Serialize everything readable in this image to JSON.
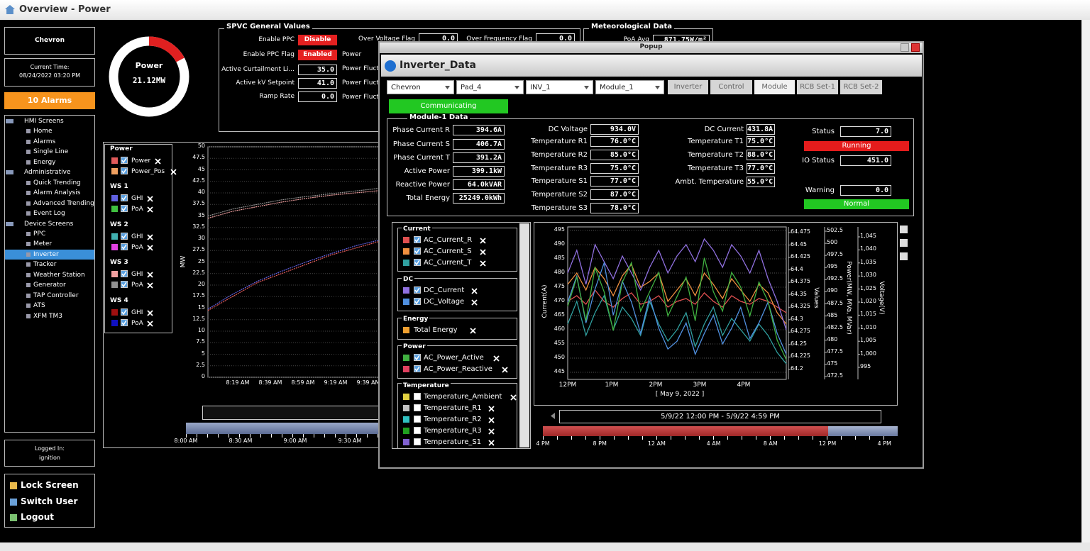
{
  "window": {
    "title": "Overview - Power"
  },
  "sidebar": {
    "site": "Chevron",
    "time_label": "Current Time:",
    "time": "08/24/2022 03:20 PM",
    "alarms": "10 Alarms",
    "tree": [
      {
        "label": "HMI Screens",
        "level": 0
      },
      {
        "label": "Home",
        "level": 1
      },
      {
        "label": "Alarms",
        "level": 1
      },
      {
        "label": "Single Line",
        "level": 1
      },
      {
        "label": "Energy",
        "level": 1
      },
      {
        "label": "Administrative",
        "level": 0
      },
      {
        "label": "Quick Trending",
        "level": 1
      },
      {
        "label": "Alarm Analysis",
        "level": 1
      },
      {
        "label": "Advanced Trending",
        "level": 1
      },
      {
        "label": "Event Log",
        "level": 1
      },
      {
        "label": "Device Screens",
        "level": 0
      },
      {
        "label": "PPC",
        "level": 1
      },
      {
        "label": "Meter",
        "level": 1
      },
      {
        "label": "Inverter",
        "level": 1,
        "selected": true
      },
      {
        "label": "Tracker",
        "level": 1
      },
      {
        "label": "Weather Station",
        "level": 1
      },
      {
        "label": "Generator",
        "level": 1
      },
      {
        "label": "TAP Controller",
        "level": 1
      },
      {
        "label": "ATS",
        "level": 1
      },
      {
        "label": "XFM TM3",
        "level": 1
      }
    ],
    "logged_label": "Logged In:",
    "user": "ignition",
    "actions": [
      "Lock Screen",
      "Switch User",
      "Logout"
    ]
  },
  "power_gauge": {
    "label": "Power",
    "value": "21.12MW"
  },
  "spvc": {
    "title": "SPVC General Values",
    "rows": [
      {
        "label": "Enable PPC",
        "value": "Disable"
      },
      {
        "label": "Enable PPC Flag",
        "value": "Enabled"
      },
      {
        "label": "Active Curtailment Li...",
        "value": "35.0"
      },
      {
        "label": "Active kV Setpoint",
        "value": "41.0"
      },
      {
        "label": "Ramp Rate",
        "value": "0.0"
      }
    ],
    "flags": [
      {
        "label": "Over Voltage Flag",
        "value": "0.0"
      },
      {
        "label": "Over Frequency Flag",
        "value": "0.0"
      }
    ],
    "hidden_labels": [
      "Power",
      "Power Fluct",
      "Power Fluct",
      "Power Fluct"
    ]
  },
  "meteo": {
    "title": "Meteorological Data",
    "label": "PoA Avg",
    "value": "871.75W/m²"
  },
  "overview_trend": {
    "y_label": "MW",
    "ylim": [
      0,
      50
    ],
    "yticks": [
      0,
      2.5,
      5,
      7.5,
      10,
      12.5,
      15,
      17.5,
      20,
      22.5,
      25,
      27.5,
      30,
      32.5,
      35,
      37.5,
      40,
      42.5,
      45,
      47.5,
      50
    ],
    "xticks": [
      "8:19 AM",
      "8:39 AM",
      "8:59 AM",
      "9:19 AM",
      "9:39 AM"
    ],
    "nav_ticks": [
      "8:00 AM",
      "8:30 AM",
      "9:00 AM",
      "9:30 AM"
    ],
    "legend": [
      {
        "title": "Power",
        "items": [
          {
            "name": "Power",
            "color": "#e05a5a",
            "values": [
              14.5,
              17.5,
              20.5,
              22.5,
              24.5,
              26.5,
              28,
              29.5
            ]
          },
          {
            "name": "Power_Pos",
            "color": "#f0a060"
          }
        ]
      },
      {
        "title": "WS 1",
        "items": [
          {
            "name": "GHI",
            "color": "#6060e0",
            "values": [
              14.8,
              18,
              20.8,
              23,
              25,
              26.8,
              28.5,
              29.8
            ]
          },
          {
            "name": "PoA",
            "color": "#40c040"
          }
        ]
      },
      {
        "title": "WS 2",
        "items": [
          {
            "name": "GHI",
            "color": "#40b0b0"
          },
          {
            "name": "PoA",
            "color": "#e040e0"
          }
        ]
      },
      {
        "title": "WS 3",
        "items": [
          {
            "name": "GHI",
            "color": "#f0a0a0",
            "values": [
              34.5,
              36,
              37,
              38,
              38.8,
              39.5,
              40,
              40.5
            ]
          },
          {
            "name": "PoA",
            "color": "#909090",
            "values": [
              35,
              36.5,
              37.5,
              38.5,
              39.2,
              39.8,
              40.4,
              41
            ]
          }
        ]
      },
      {
        "title": "WS 4",
        "items": [
          {
            "name": "GHI",
            "color": "#a01010"
          },
          {
            "name": "PoA",
            "color": "#1010c0"
          }
        ]
      }
    ]
  },
  "popup": {
    "title": "Popup",
    "heading": "Inverter_Data",
    "selectors": [
      "Chevron",
      "Pad_4",
      "INV_1",
      "Module_1"
    ],
    "tabs": [
      "Inverter",
      "Control",
      "Module",
      "RCB Set-1",
      "RCB Set-2"
    ],
    "status": "Communicating",
    "module": {
      "title": "Module-1 Data",
      "columns": [
        [
          {
            "label": "Phase Current R",
            "value": "394.6A"
          },
          {
            "label": "Phase Current S",
            "value": "406.7A"
          },
          {
            "label": "Phase Current T",
            "value": "391.2A"
          },
          {
            "label": "Active Power",
            "value": "399.1kW"
          },
          {
            "label": "Reactive Power",
            "value": "64.0kVAR"
          },
          {
            "label": "Total Energy",
            "value": "25249.0kWh"
          }
        ],
        [
          {
            "label": "DC Voltage",
            "value": "934.0V"
          },
          {
            "label": "Temperature R1",
            "value": "76.0°C"
          },
          {
            "label": "Temperature R2",
            "value": "85.0°C"
          },
          {
            "label": "Temperature R3",
            "value": "75.0°C"
          },
          {
            "label": "Temperature S1",
            "value": "77.0°C"
          },
          {
            "label": "Temperature S2",
            "value": "87.0°C"
          },
          {
            "label": "Temperature S3",
            "value": "78.0°C"
          }
        ],
        [
          {
            "label": "DC Current",
            "value": "431.8A"
          },
          {
            "label": "Temperature T1",
            "value": "75.0°C"
          },
          {
            "label": "Temperature T2",
            "value": "88.0°C"
          },
          {
            "label": "Temperature T3",
            "value": "77.0°C"
          },
          {
            "label": "Ambt. Temperature",
            "value": "55.0°C"
          }
        ]
      ],
      "status": {
        "label": "Status",
        "value": "7.0",
        "state": "Running"
      },
      "io": {
        "label": "IO Status",
        "value": "451.0"
      },
      "warning": {
        "label": "Warning",
        "value": "0.0",
        "state": "Normal"
      }
    },
    "trend": {
      "legend": [
        {
          "title": "Current",
          "items": [
            {
              "name": "AC_Current_R",
              "color": "#e05050",
              "checked": true,
              "values": [
                470,
                472,
                469,
                474,
                470,
                468,
                471,
                473,
                469,
                470,
                472,
                468,
                470,
                471,
                469,
                473,
                470,
                468,
                472,
                470,
                469,
                471,
                470,
                468,
                466
              ]
            },
            {
              "name": "AC_Current_S",
              "color": "#f09040",
              "checked": true,
              "values": [
                476,
                480,
                474,
                482,
                478,
                472,
                479,
                483,
                475,
                477,
                480,
                470,
                474,
                478,
                472,
                480,
                476,
                471,
                478,
                474,
                470,
                476,
                473,
                466,
                462
              ]
            },
            {
              "name": "AC_Current_T",
              "color": "#30a0a0",
              "checked": true,
              "values": [
                462,
                470,
                458,
                466,
                472,
                460,
                468,
                464,
                458,
                470,
                462,
                456,
                460,
                466,
                454,
                462,
                468,
                458,
                464,
                460,
                456,
                462,
                458,
                452,
                448
              ]
            }
          ]
        },
        {
          "title": "DC",
          "items": [
            {
              "name": "DC_Current",
              "color": "#9070e0",
              "checked": true,
              "values": [
                480,
                488,
                476,
                490,
                484,
                478,
                486,
                480,
                474,
                482,
                488,
                480,
                486,
                490,
                484,
                492,
                488,
                482,
                490,
                486,
                480,
                488,
                478,
                470,
                460
              ]
            },
            {
              "name": "DC_Voltage",
              "color": "#5090e0",
              "checked": true,
              "axis": "y4",
              "values": [
                1020,
                1030,
                1012,
                1025,
                1035,
                1015,
                1028,
                1020,
                1008,
                1022,
                1010,
                1002,
                1005,
                1012,
                1000,
                1008,
                1015,
                1004,
                1010,
                1018,
                1006,
                1012,
                1020,
                1008,
                1000
              ]
            }
          ]
        },
        {
          "title": "Energy",
          "items": [
            {
              "name": "Total Energy",
              "color": "#f0a030"
            }
          ]
        },
        {
          "title": "Power",
          "items": [
            {
              "name": "AC_Power_Active",
              "color": "#40b040",
              "checked": true,
              "axis": "y3",
              "values": [
                487,
                493,
                484,
                495,
                490,
                482,
                492,
                496,
                486,
                490,
                494,
                485,
                489,
                493,
                484,
                497,
                490,
                486,
                494,
                491,
                485,
                492,
                488,
                480,
                476
              ]
            },
            {
              "name": "AC_Power_Reactive",
              "color": "#e04060",
              "checked": true
            }
          ]
        },
        {
          "title": "Temperature",
          "items": [
            {
              "name": "Temperature_Ambient",
              "color": "#e0d040",
              "checked": false
            },
            {
              "name": "Temperature_R1",
              "color": "#c0c0c0",
              "checked": false
            },
            {
              "name": "Temperature_R2",
              "color": "#30c0c0",
              "checked": false
            },
            {
              "name": "Temperature_R3",
              "color": "#20a020",
              "checked": false
            },
            {
              "name": "Temperature_S1",
              "color": "#8060d0",
              "checked": false
            }
          ]
        }
      ],
      "axes": {
        "y": {
          "label": "Current(A)",
          "lim": [
            445,
            495
          ],
          "ticks": [
            445,
            450,
            455,
            460,
            465,
            470,
            475,
            480,
            485,
            490,
            495
          ]
        },
        "y2": {
          "label": "Values",
          "lim": [
            64.2,
            64.475
          ],
          "ticks": [
            64.2,
            64.225,
            64.25,
            64.275,
            64.3,
            64.325,
            64.35,
            64.375,
            64.4,
            64.425,
            64.45,
            64.475
          ]
        },
        "y3": {
          "label": "Power(MW, MVa, MVar)",
          "lim": [
            472.5,
            502.5
          ],
          "ticks": [
            472.5,
            475,
            477.5,
            480,
            482.5,
            485,
            487.5,
            490,
            492.5,
            495,
            497.5,
            500,
            502.5
          ]
        },
        "y4": {
          "label": "Voltage(V)",
          "lim": [
            995,
            1045
          ],
          "ticks": [
            995,
            {
              "value": 1000,
              "label": "1,000"
            },
            {
              "value": 1005,
              "label": "1,005"
            },
            {
              "value": 1010,
              "label": "1,010"
            },
            {
              "value": 1015,
              "label": "1,015"
            },
            {
              "value": 1020,
              "label": "1,020"
            },
            {
              "value": 1025,
              "label": "1,025"
            },
            {
              "value": 1030,
              "label": "1,030"
            },
            {
              "value": 1035,
              "label": "1,035"
            },
            {
              "value": 1040,
              "label": "1,040"
            },
            {
              "value": 1045,
              "label": "1,045"
            }
          ]
        }
      },
      "xticks": [
        "12PM",
        "1PM",
        "2PM",
        "3PM",
        "4PM"
      ],
      "x_label": "[ May 9, 2022 ]",
      "range": "5/9/22 12:00 PM - 5/9/22 4:59 PM",
      "nav_ticks": [
        "4 PM",
        "8 PM",
        "12 AM",
        "4 AM",
        "8 AM",
        "12 PM",
        "4 PM"
      ]
    }
  }
}
